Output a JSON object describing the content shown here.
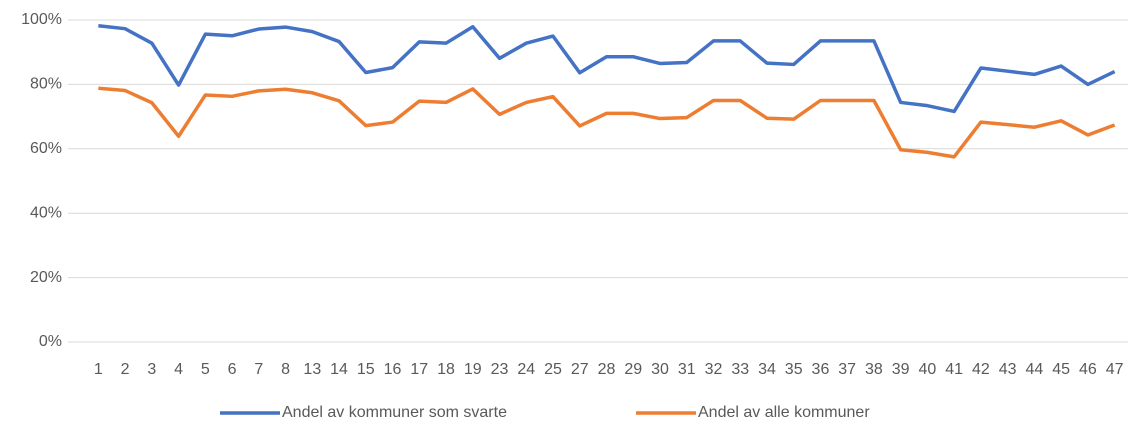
{
  "chart_data": {
    "type": "line",
    "categories": [
      "1",
      "2",
      "3",
      "4",
      "5",
      "6",
      "7",
      "8",
      "13",
      "14",
      "15",
      "16",
      "17",
      "18",
      "19",
      "23",
      "24",
      "25",
      "27",
      "28",
      "29",
      "30",
      "31",
      "32",
      "33",
      "34",
      "35",
      "36",
      "37",
      "38",
      "39",
      "40",
      "41",
      "42",
      "43",
      "44",
      "45",
      "46",
      "47"
    ],
    "series": [
      {
        "name": "Andel av kommuner som svarte",
        "color": "#4472c4",
        "values": [
          98.2,
          97.3,
          92.8,
          79.8,
          95.6,
          95.1,
          97.2,
          97.8,
          96.4,
          93.3,
          83.7,
          85.2,
          93.2,
          92.8,
          97.9,
          88.1,
          92.8,
          95,
          83.6,
          88.6,
          88.6,
          86.5,
          86.8,
          93.5,
          93.5,
          86.6,
          86.2,
          93.5,
          93.5,
          93.5,
          74.4,
          73.4,
          71.6,
          85.1,
          84.1,
          83.1,
          85.7,
          80,
          84
        ]
      },
      {
        "name": "Andel av alle kommuner",
        "color": "#ed7d31",
        "values": [
          78.8,
          78.1,
          74.3,
          63.9,
          76.7,
          76.3,
          78,
          78.5,
          77.4,
          74.9,
          67.2,
          68.3,
          74.8,
          74.4,
          78.6,
          70.7,
          74.4,
          76.2,
          67.1,
          71,
          71,
          69.4,
          69.7,
          75,
          75,
          69.5,
          69.2,
          75,
          75,
          75,
          59.7,
          58.9,
          57.5,
          68.3,
          67.5,
          66.7,
          68.7,
          64.3,
          67.4
        ]
      }
    ],
    "ylim": [
      0,
      100
    ],
    "yticks": [
      {
        "value": 0,
        "label": "0%"
      },
      {
        "value": 20,
        "label": "20%"
      },
      {
        "value": 40,
        "label": "40%"
      },
      {
        "value": 60,
        "label": "60%"
      },
      {
        "value": 80,
        "label": "80%"
      },
      {
        "value": 100,
        "label": "100%"
      }
    ],
    "grid": true,
    "legend": "bottom"
  }
}
